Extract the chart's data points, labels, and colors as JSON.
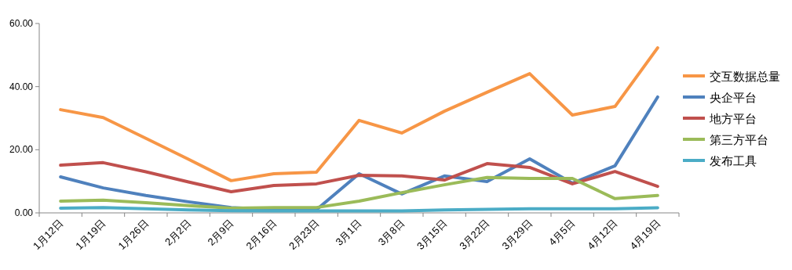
{
  "chart_data": {
    "type": "line",
    "categories": [
      "1月12日",
      "1月19日",
      "1月26日",
      "2月2日",
      "2月9日",
      "2月16日",
      "2月23日",
      "3月1日",
      "3月8日",
      "3月15日",
      "3月22日",
      "3月29日",
      "4月5日",
      "4月12日",
      "4月19日"
    ],
    "series": [
      {
        "name": "交互数据总量",
        "color": "#f79646",
        "values": [
          32.7,
          30.2,
          23.6,
          17.0,
          10.2,
          12.4,
          12.9,
          29.3,
          25.3,
          32.2,
          38.2,
          44.1,
          31.0,
          33.7,
          52.3
        ]
      },
      {
        "name": "央企平台",
        "color": "#4f81bd",
        "values": [
          11.4,
          7.9,
          5.5,
          3.5,
          1.7,
          1.0,
          1.0,
          12.4,
          6.0,
          11.7,
          9.9,
          17.1,
          9.4,
          14.9,
          36.7
        ]
      },
      {
        "name": "地方平台",
        "color": "#c0504d",
        "values": [
          15.1,
          15.9,
          13.0,
          9.8,
          6.7,
          8.7,
          9.2,
          11.9,
          11.7,
          10.4,
          15.6,
          14.4,
          9.2,
          13.1,
          8.4
        ]
      },
      {
        "name": "第三方平台",
        "color": "#9bbb59",
        "values": [
          3.7,
          4.0,
          3.2,
          2.3,
          1.5,
          1.7,
          1.7,
          3.7,
          6.4,
          8.9,
          11.2,
          10.9,
          10.9,
          4.5,
          5.5
        ]
      },
      {
        "name": "发布工具",
        "color": "#4bacc6",
        "values": [
          1.5,
          1.7,
          1.3,
          0.9,
          0.7,
          0.6,
          0.6,
          0.6,
          0.6,
          0.9,
          1.1,
          1.3,
          1.3,
          1.3,
          1.6
        ]
      }
    ],
    "ylim": [
      0,
      60
    ],
    "yticks": [
      {
        "value": 0,
        "label": "0.00"
      },
      {
        "value": 20,
        "label": "20.00"
      },
      {
        "value": 40,
        "label": "40.00"
      },
      {
        "value": 60,
        "label": "60.00"
      }
    ],
    "grid": false,
    "legend": "right",
    "marker": "none"
  }
}
